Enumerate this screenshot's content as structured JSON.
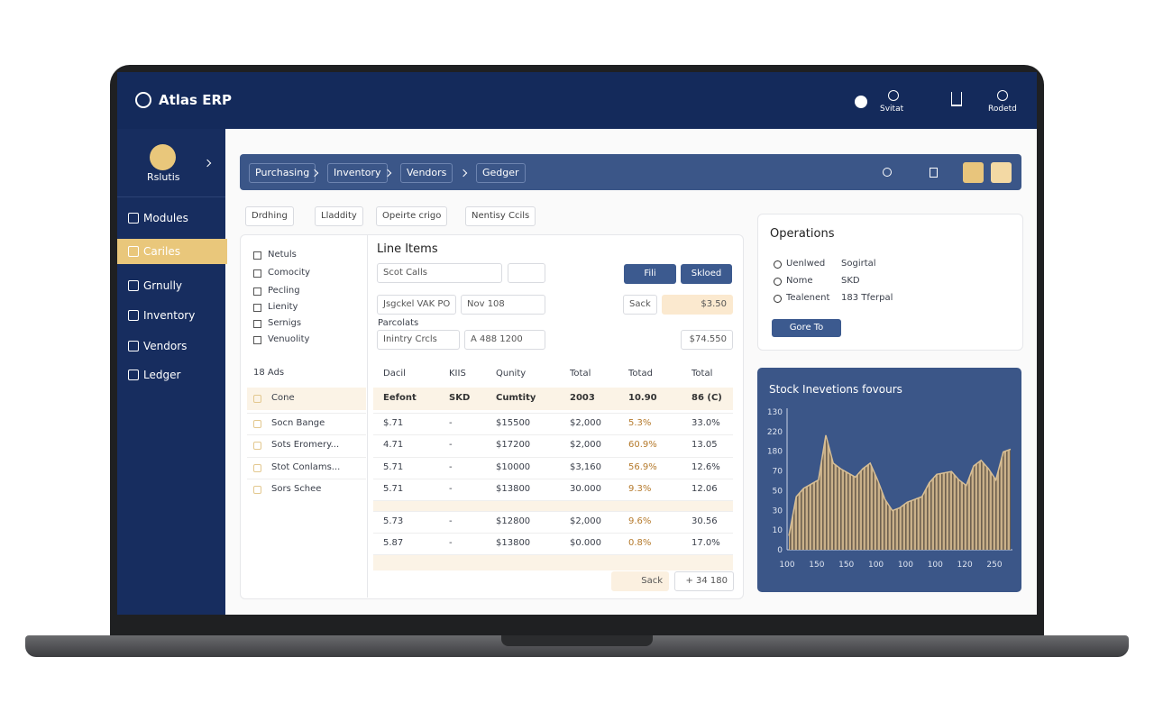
{
  "header": {
    "brand": "Atlas ERP",
    "icons": [
      "Svitat",
      "Rodetd"
    ]
  },
  "sidebar": {
    "profile": "Rslutis",
    "nav": [
      "Modules",
      "Cariles",
      "Grnully",
      "Inventory",
      "Vendors",
      "Ledger"
    ],
    "active": 1
  },
  "breadcrumbs": [
    "Purchasing",
    "Inventory",
    "Vendors",
    "Gedger"
  ],
  "filters": [
    "Drdhing",
    "Lladdity",
    "Opeirte crigo",
    "Nentisy Ccils"
  ],
  "list": {
    "items": [
      "Netuls",
      "Comocity",
      "Pecling",
      "Lienity",
      "Sernigs",
      "Venuolity"
    ],
    "count": "18 Ads",
    "rows": [
      "Cone",
      "Socn Bange",
      "Sots Eromery...",
      "Stot Conlams...",
      "Sors Schee"
    ]
  },
  "line_items": {
    "title": "Line Items",
    "search": "Scot Calls",
    "buttons": [
      "Fili",
      "Skloed"
    ],
    "fields": {
      "vendor": "Jsgckel VAK PO",
      "date": "Nov 108",
      "label1": "Sack",
      "amount1": "$3.50",
      "section": "Parcolats",
      "type": "Inintry Crcls",
      "code": "A 488 1200",
      "amount2": "$74.550"
    },
    "table": {
      "header": [
        "Dacil",
        "KIIS",
        "Qunity",
        "Total",
        "Totad",
        "Total"
      ],
      "subheader": [
        "Eefont",
        "SKD",
        "Cumtity",
        "2003",
        "10.90",
        "86 (C)"
      ],
      "rows": [
        [
          "$.71",
          "-",
          "$15500",
          "$2,000",
          "5.3%",
          "33.0%"
        ],
        [
          "4.71",
          "-",
          "$17200",
          "$2,000",
          "60.9%",
          "13.05"
        ],
        [
          "5.71",
          "-",
          "$10000",
          "$3,160",
          "56.9%",
          "12.6%"
        ],
        [
          "5.71",
          "-",
          "$13800",
          "30.000",
          "9.3%",
          "12.06"
        ],
        [
          "5.73",
          "-",
          "$12800",
          "$2,000",
          "9.6%",
          "30.56"
        ],
        [
          "5.87",
          "-",
          "$13800",
          "$0.000",
          "0.8%",
          "17.0%"
        ]
      ]
    },
    "footer": [
      "Sack",
      "+ 34 180"
    ]
  },
  "operations": {
    "title": "Operations",
    "rows": [
      [
        "Uenlwed",
        "Sogirtal"
      ],
      [
        "Nome",
        "SKD"
      ],
      [
        "Tealenent",
        "183 Tferpal"
      ]
    ],
    "button": "Gore To"
  },
  "stock_chart": {
    "title": "Stock Inevetions fovours",
    "y_labels": [
      "130",
      "220",
      "180",
      "70",
      "50",
      "30",
      "10",
      "0"
    ],
    "x_labels": [
      "100",
      "150",
      "150",
      "100",
      "100",
      "100",
      "120",
      "250"
    ],
    "ylim": [
      0,
      100
    ],
    "values": [
      10,
      38,
      44,
      47,
      50,
      82,
      62,
      58,
      55,
      52,
      58,
      62,
      50,
      36,
      28,
      30,
      34,
      36,
      38,
      48,
      54,
      55,
      56,
      50,
      46,
      60,
      64,
      58,
      50,
      70,
      72
    ]
  }
}
